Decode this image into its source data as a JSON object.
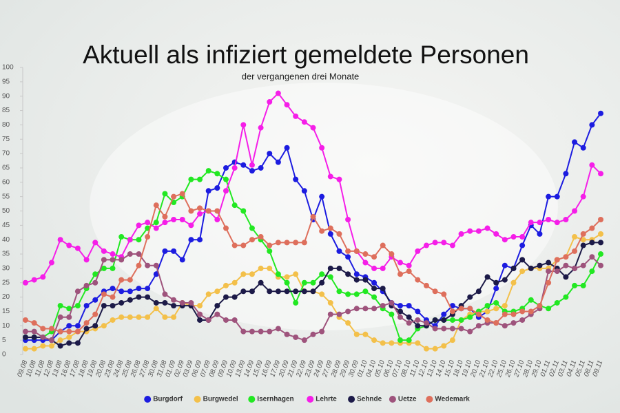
{
  "chart_data": {
    "type": "line",
    "title": "Aktuell als infiziert gemeldete Personen",
    "subtitle": "der vergangenen drei Monate",
    "categories": [
      "09.08",
      "10.08",
      "11.08",
      "12.08",
      "13.08",
      "16.08",
      "17.08",
      "18.08",
      "19.08",
      "20.08",
      "23.08",
      "24.08",
      "25.08",
      "26.08",
      "27.08",
      "30.08",
      "31.08",
      "01.09",
      "02.09",
      "03.09",
      "06.09",
      "07.09",
      "08.09",
      "09.09",
      "10.09",
      "13.09",
      "14.09",
      "15.09",
      "16.09",
      "17.09",
      "20.09",
      "21.09",
      "22.09",
      "23.09",
      "24.09",
      "27.09",
      "28.09",
      "29.09",
      "30.09",
      "01.10",
      "04.10",
      "05.10",
      "06.10",
      "07.10",
      "08.10",
      "11.10",
      "12.10",
      "13.10",
      "14.10",
      "15.10",
      "18.10",
      "19.10",
      "20.10",
      "21.10",
      "22.10",
      "25.10",
      "26.10",
      "27.10",
      "28.10",
      "29.10",
      "01.11",
      "02.11",
      "03.11",
      "04.11",
      "05.11",
      "08.11",
      "09.11"
    ],
    "series": [
      {
        "name": "Burgdorf",
        "color": "#1c1ce0",
        "values": [
          5,
          5,
          5,
          5,
          8,
          10,
          10,
          17,
          19,
          22,
          23,
          22,
          22,
          23,
          23,
          28,
          36,
          36,
          33,
          40,
          40,
          57,
          58,
          65,
          67,
          66,
          64,
          65,
          70,
          67,
          72,
          61,
          57,
          47,
          55,
          42,
          36,
          34,
          28,
          27,
          25,
          22,
          18,
          17,
          17,
          15,
          12,
          10,
          14,
          17,
          16,
          16,
          13,
          15,
          23,
          31,
          30,
          38,
          45,
          42,
          55,
          55,
          63,
          74,
          72,
          80,
          84
        ]
      },
      {
        "name": "Burgwedel",
        "color": "#f3c04a",
        "values": [
          2,
          2,
          3,
          3,
          5,
          6,
          8,
          8,
          9,
          10,
          12,
          13,
          13,
          13,
          13,
          16,
          13,
          13,
          18,
          17,
          17,
          21,
          22,
          24,
          25,
          28,
          28,
          30,
          30,
          27,
          27,
          28,
          22,
          22,
          21,
          18,
          13,
          11,
          7,
          7,
          5,
          4,
          4,
          4,
          4,
          4,
          2,
          2,
          3,
          5,
          12,
          14,
          15,
          15,
          16,
          17,
          25,
          29,
          30,
          30,
          30,
          33,
          34,
          41,
          40,
          40,
          42
        ]
      },
      {
        "name": "Isernhagen",
        "color": "#22e822",
        "values": [
          6,
          6,
          6,
          8,
          17,
          16,
          17,
          23,
          28,
          30,
          30,
          41,
          40,
          40,
          44,
          46,
          56,
          53,
          55,
          61,
          61,
          64,
          63,
          61,
          52,
          50,
          44,
          40,
          36,
          28,
          25,
          18,
          25,
          25,
          28,
          27,
          22,
          21,
          21,
          22,
          20,
          16,
          14,
          5,
          5,
          9,
          10,
          12,
          12,
          12,
          12,
          13,
          15,
          17,
          18,
          15,
          15,
          16,
          19,
          17,
          16,
          18,
          20,
          24,
          24,
          29,
          35
        ]
      },
      {
        "name": "Lehrte",
        "color": "#f51ee8",
        "values": [
          25,
          26,
          27,
          32,
          40,
          38,
          37,
          33,
          39,
          36,
          35,
          34,
          40,
          45,
          46,
          44,
          46,
          47,
          47,
          45,
          49,
          50,
          47,
          57,
          65,
          80,
          66,
          79,
          88,
          91,
          87,
          83,
          81,
          79,
          72,
          62,
          61,
          47,
          36,
          32,
          30,
          30,
          34,
          32,
          31,
          36,
          38,
          39,
          39,
          38,
          42,
          43,
          43,
          44,
          42,
          40,
          41,
          41,
          46,
          46,
          47,
          46,
          47,
          50,
          55,
          66,
          63
        ]
      },
      {
        "name": "Sehnde",
        "color": "#1c1a48",
        "values": [
          6,
          6,
          6,
          5,
          3,
          4,
          4,
          9,
          10,
          17,
          17,
          18,
          19,
          20,
          20,
          18,
          18,
          17,
          17,
          17,
          12,
          12,
          17,
          20,
          20,
          22,
          22,
          25,
          22,
          22,
          22,
          22,
          22,
          22,
          25,
          30,
          30,
          28,
          26,
          26,
          23,
          23,
          17,
          15,
          13,
          10,
          10,
          12,
          12,
          14,
          17,
          20,
          22,
          27,
          25,
          26,
          30,
          33,
          30,
          31,
          32,
          30,
          27,
          30,
          38,
          39,
          39
        ]
      },
      {
        "name": "Uetze",
        "color": "#9e537c",
        "values": [
          8,
          8,
          6,
          5,
          13,
          13,
          22,
          24,
          25,
          33,
          33,
          33,
          35,
          35,
          31,
          31,
          21,
          19,
          18,
          18,
          14,
          12,
          14,
          12,
          12,
          8,
          8,
          8,
          8,
          9,
          7,
          6,
          5,
          7,
          8,
          14,
          14,
          15,
          16,
          16,
          16,
          17,
          18,
          13,
          11,
          12,
          11,
          9,
          9,
          9,
          9,
          8,
          10,
          11,
          11,
          10,
          11,
          12,
          14,
          16,
          29,
          29,
          31,
          30,
          31,
          34,
          31
        ]
      },
      {
        "name": "Wedemark",
        "color": "#de6f5c",
        "values": [
          12,
          11,
          9,
          9,
          8,
          8,
          8,
          11,
          14,
          21,
          20,
          26,
          26,
          31,
          41,
          52,
          48,
          55,
          56,
          50,
          51,
          50,
          50,
          44,
          38,
          38,
          40,
          41,
          38,
          39,
          39,
          39,
          39,
          48,
          43,
          44,
          42,
          36,
          36,
          35,
          34,
          38,
          35,
          28,
          29,
          26,
          24,
          22,
          21,
          15,
          16,
          16,
          14,
          12,
          11,
          14,
          14,
          15,
          15,
          17,
          25,
          33,
          34,
          36,
          42,
          44,
          47
        ]
      }
    ],
    "ylim": [
      0,
      100
    ],
    "yticks": [
      0,
      5,
      10,
      15,
      20,
      25,
      30,
      35,
      40,
      45,
      50,
      55,
      60,
      65,
      70,
      75,
      80,
      85,
      90,
      95,
      100
    ]
  }
}
